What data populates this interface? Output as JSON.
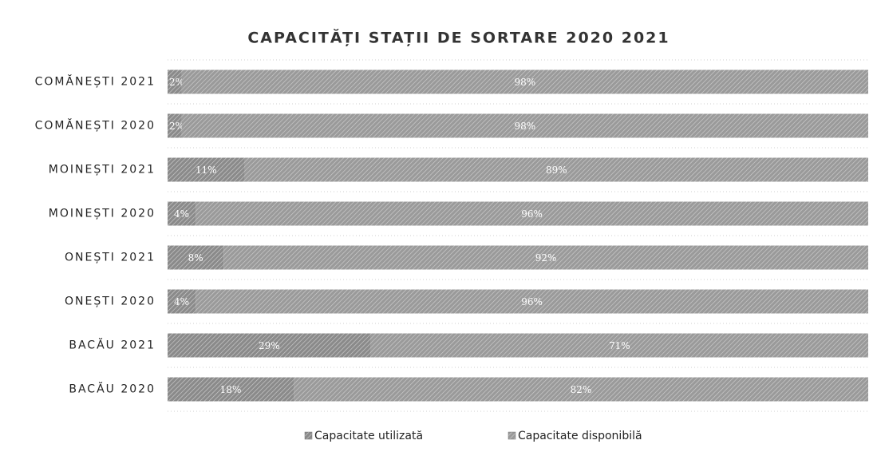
{
  "chart_data": {
    "type": "stacked-bar-horizontal",
    "title": "CAPACITĂȚI STAȚII DE SORTARE 2020 2021",
    "categories": [
      "COMĂNEȘTI 2021",
      "COMĂNEȘTI 2020",
      "MOINEȘTI 2021",
      "MOINEȘTI 2020",
      "ONEȘTI 2021",
      "ONEȘTI 2020",
      "BACĂU 2021",
      "BACĂU 2020"
    ],
    "series": [
      {
        "name": "Capacitate utilizată",
        "color": "#8a8a8a",
        "values": [
          2,
          2,
          11,
          4,
          8,
          4,
          29,
          18
        ],
        "value_labels": [
          "2%",
          "2%",
          "11%",
          "4%",
          "8%",
          "4%",
          "29%",
          "18%"
        ]
      },
      {
        "name": "Capacitate disponibilă",
        "color": "#9a9a9a",
        "values": [
          98,
          98,
          89,
          96,
          92,
          96,
          71,
          82
        ],
        "value_labels": [
          "98%",
          "98%",
          "89%",
          "96%",
          "92%",
          "96%",
          "71%",
          "82%"
        ]
      }
    ],
    "legend": "bottom"
  }
}
